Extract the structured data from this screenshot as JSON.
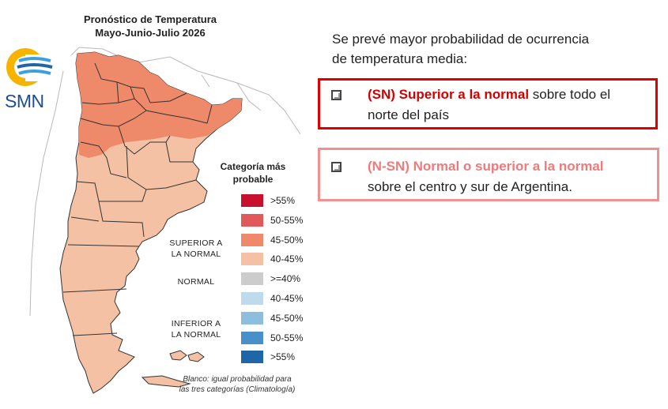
{
  "map": {
    "title_line1": "Pronóstico de Temperatura",
    "title_line2": "Mayo-Junio-Julio 2026",
    "logo_text": "SMN",
    "legend_title_line1": "Categoría más",
    "legend_title_line2": "probable",
    "categories": {
      "superior_line1": "SUPERIOR A",
      "superior_line2": "LA NORMAL",
      "normal": "NORMAL",
      "inferior_line1": "INFERIOR A",
      "inferior_line2": "LA NORMAL"
    },
    "legend": [
      {
        "label": ">55%",
        "color": "#c8102e"
      },
      {
        "label": "50-55%",
        "color": "#e05a5a"
      },
      {
        "label": "45-50%",
        "color": "#ee8a6a"
      },
      {
        "label": "40-45%",
        "color": "#f5c1a5"
      },
      {
        "label": ">=40%",
        "color": "#cccccc"
      },
      {
        "label": "40-45%",
        "color": "#bcdbeb"
      },
      {
        "label": "45-50%",
        "color": "#8dbedd"
      },
      {
        "label": "50-55%",
        "color": "#4a90c8"
      },
      {
        "label": ">55%",
        "color": "#1f66a8"
      }
    ],
    "footnote_line1": "Blanco: igual probabilidad para",
    "footnote_line2": "las tres categorías (Climatología)",
    "colors": {
      "north": "#ee8a6a",
      "rest": "#f5c1a5",
      "sea": "#ffffff",
      "borders": "#333333"
    }
  },
  "text": {
    "intro_line1": "Se prevé mayor probabilidad de ocurrencia",
    "intro_line2": "de temperatura media:",
    "sn": {
      "highlight": "(SN) Superior a la normal",
      "rest_line1": " sobre todo el",
      "line2": "norte del país"
    },
    "nsn": {
      "highlight": "(N-SN) Normal o superior a la normal",
      "line2": "sobre el centro y sur de Argentina."
    }
  },
  "accent_colors": {
    "sn_border": "#e00000",
    "nsn_border": "#f09090"
  }
}
